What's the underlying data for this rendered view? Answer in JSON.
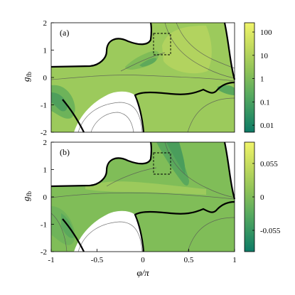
{
  "chart_data": [
    {
      "type": "heatmap",
      "panel_label": "(a)",
      "ylabel": "g_fb",
      "xlim": [
        -1,
        1
      ],
      "ylim": [
        -2,
        2
      ],
      "yticks": [
        "2",
        "1",
        "0",
        "-1",
        "-2"
      ],
      "colorbar": {
        "scale": "log",
        "ticks": [
          "100",
          "10",
          "1",
          "0.1",
          "0.01"
        ],
        "tick_values": [
          100,
          10,
          1,
          0.1,
          0.01
        ],
        "colormap": [
          "#f0f46a",
          "#b6d35c",
          "#84bd58",
          "#55a860",
          "#2a8e64",
          "#0e7a66"
        ]
      },
      "inset_box": {
        "x": [
          0.12,
          0.3
        ],
        "y": [
          0.8,
          1.5
        ]
      }
    },
    {
      "type": "heatmap",
      "panel_label": "(b)",
      "ylabel": "g_fb",
      "xlabel": "φ/π",
      "xlim": [
        -1,
        1
      ],
      "ylim": [
        -2,
        2
      ],
      "xticks": [
        "-1",
        "-0.5",
        "0",
        "0.5",
        "1"
      ],
      "yticks": [
        "2",
        "1",
        "0",
        "-1",
        "-2"
      ],
      "colorbar": {
        "scale": "linear",
        "ticks": [
          "0.055",
          "0",
          "-0.055"
        ],
        "tick_values": [
          0.055,
          0,
          -0.055
        ],
        "colormap": [
          "#f0f46a",
          "#b6d35c",
          "#84bd58",
          "#55a860",
          "#2a8e64",
          "#0e7a66"
        ]
      },
      "inset_box": {
        "x": [
          0.12,
          0.3
        ],
        "y": [
          0.8,
          1.5
        ]
      }
    }
  ]
}
